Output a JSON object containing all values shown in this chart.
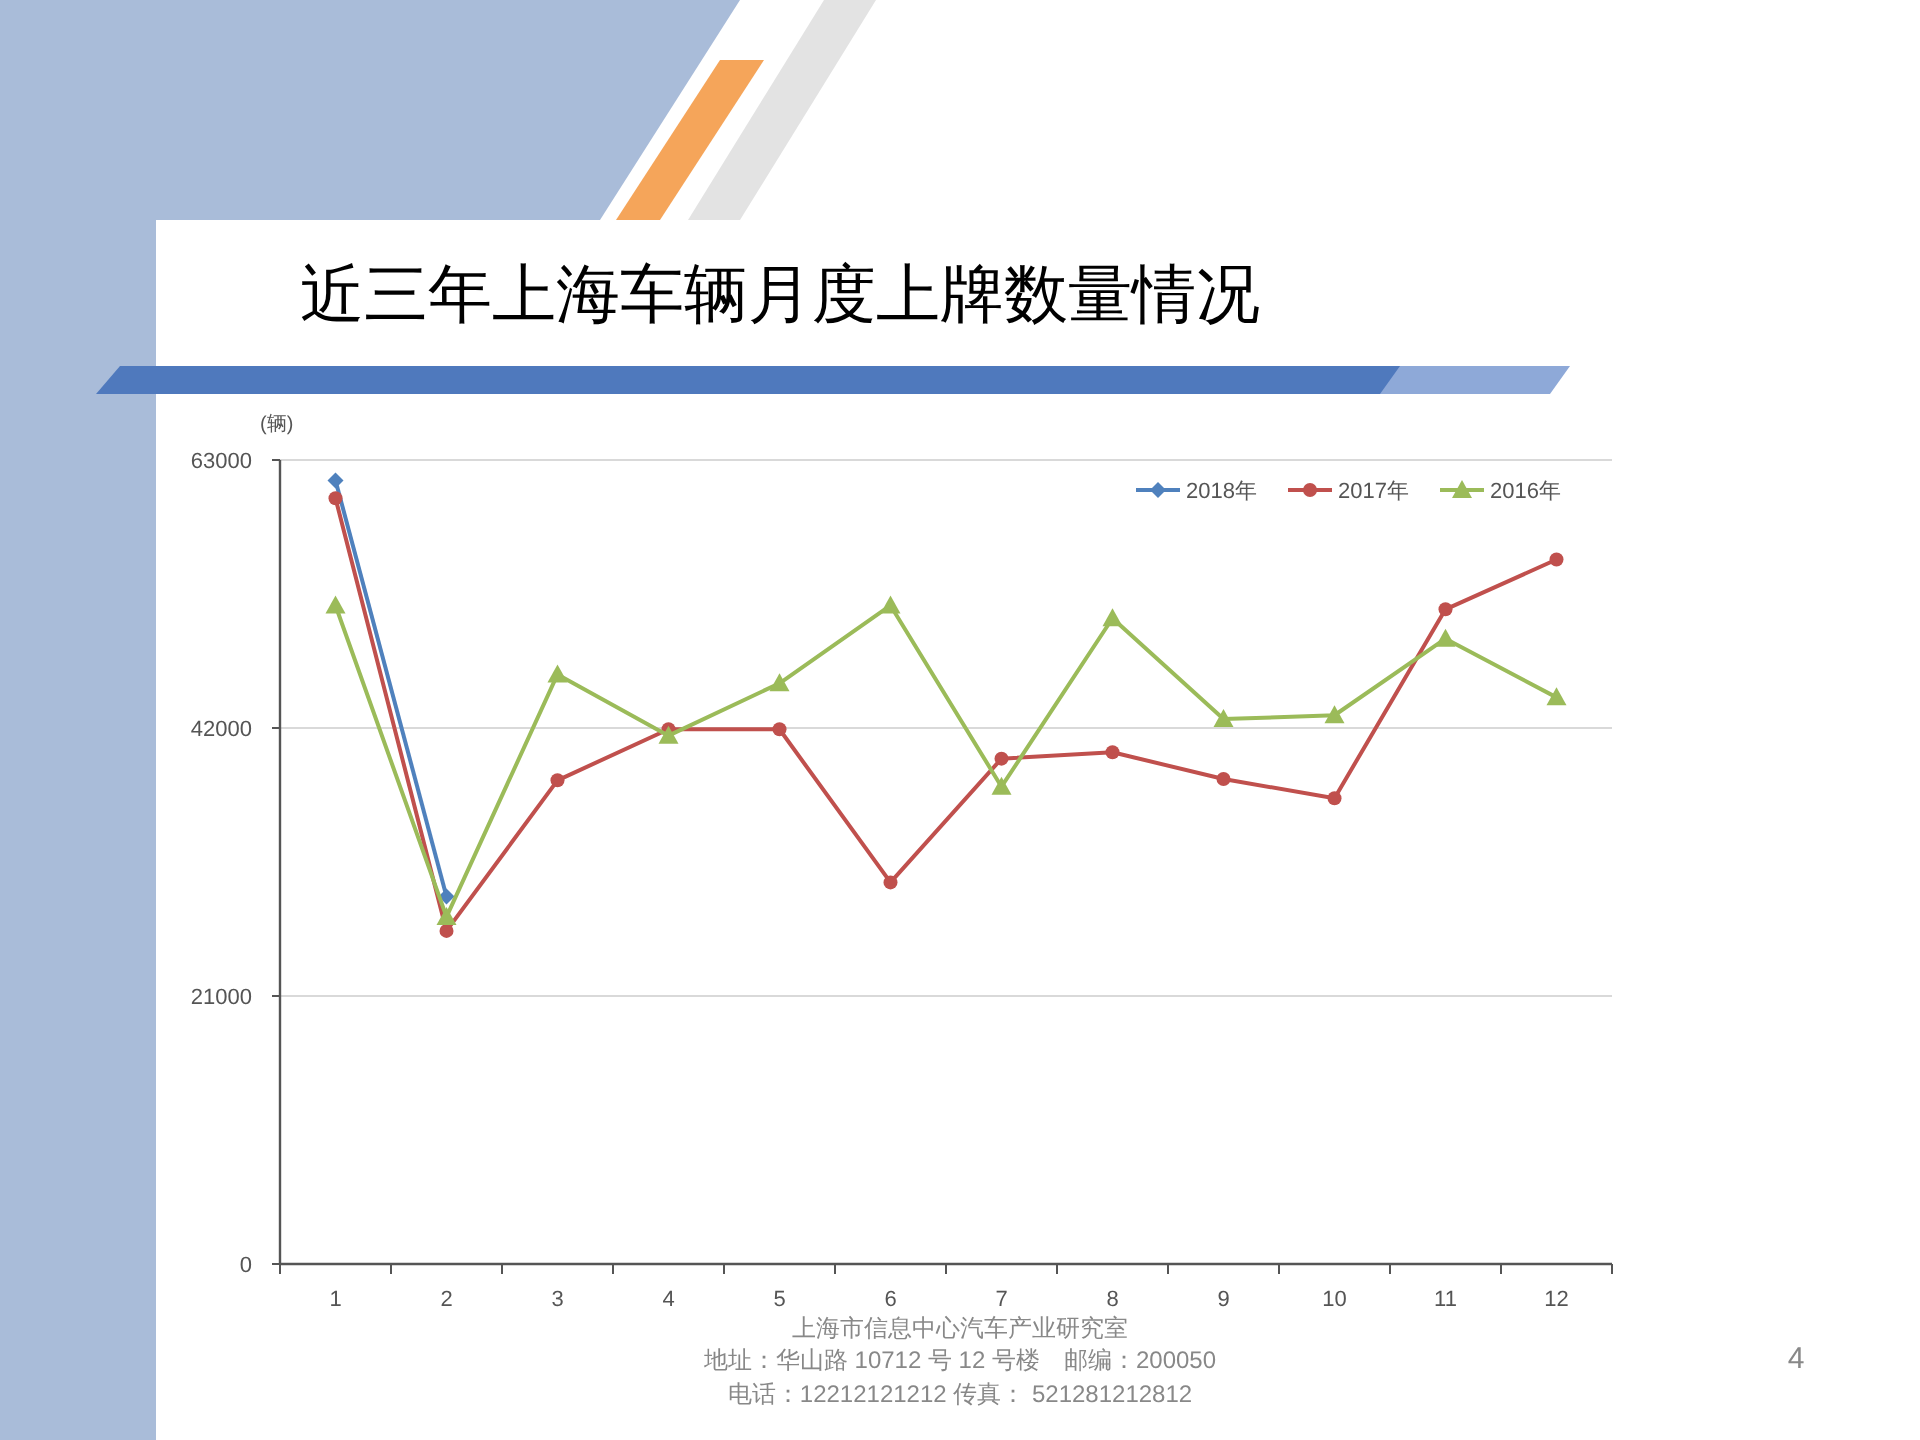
{
  "chart_data": {
    "type": "line",
    "title": "近三年上海车辆月度上牌数量情况",
    "ylabel": "(辆)",
    "categories": [
      "1",
      "2",
      "3",
      "4",
      "5",
      "6",
      "7",
      "8",
      "9",
      "10",
      "11",
      "12"
    ],
    "series": [
      {
        "name": "2018年",
        "color": "#4f81bd",
        "marker": "diamond",
        "values": [
          61400,
          28800,
          null,
          null,
          null,
          null,
          null,
          null,
          null,
          null,
          null,
          null
        ]
      },
      {
        "name": "2017年",
        "color": "#c0504d",
        "marker": "circle",
        "values": [
          60000,
          26100,
          37900,
          41900,
          41900,
          29900,
          39600,
          40100,
          38000,
          36500,
          51300,
          55200
        ]
      },
      {
        "name": "2016年",
        "color": "#9bbb59",
        "marker": "triangle",
        "values": [
          51600,
          27200,
          46200,
          41400,
          45500,
          51600,
          37400,
          50600,
          42700,
          43000,
          49000,
          44400
        ]
      }
    ],
    "ylim": [
      0,
      63000
    ],
    "yticks": [
      0,
      21000,
      42000,
      63000
    ],
    "grid": "y",
    "legend": "top right",
    "annotations": [
      "上海市信息中心汽车产业研究室",
      "地址：华山路 10712 号 12 号楼　邮编：200050",
      "电话：12212121212  传真： 521281212812",
      "4"
    ]
  }
}
